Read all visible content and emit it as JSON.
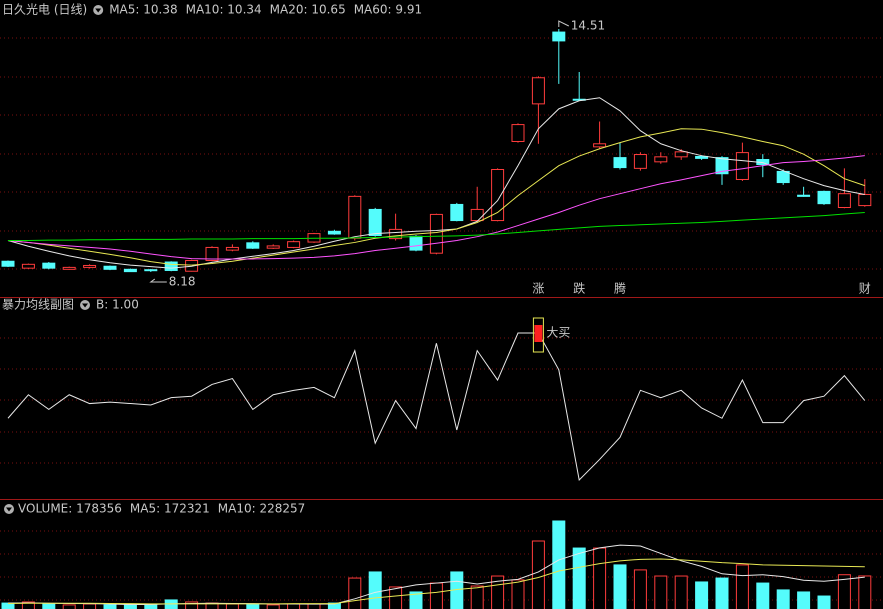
{
  "chart_data": [
    {
      "type": "candlestick",
      "title": "日久光电 (日线)",
      "up_color": "#ff3c3c",
      "down_color": "#54fcfc",
      "open": [
        8.46,
        8.28,
        8.41,
        8.25,
        8.3,
        8.33,
        8.25,
        8.24,
        8.44,
        8.2,
        8.48,
        8.75,
        8.94,
        8.8,
        8.82,
        8.96,
        9.24,
        9.06,
        9.81,
        9.05,
        9.11,
        8.67,
        9.94,
        9.52,
        9.52,
        11.58,
        12.56,
        14.43,
        12.68,
        11.44,
        11.16,
        10.88,
        11.05,
        11.18,
        11.19,
        11.16,
        10.59,
        11.11,
        10.8,
        10.18,
        10.28,
        9.86,
        9.91
      ],
      "high": [
        8.48,
        8.4,
        8.44,
        8.32,
        8.38,
        8.35,
        8.27,
        8.26,
        8.46,
        8.5,
        8.85,
        8.9,
        8.98,
        8.9,
        9.0,
        9.2,
        9.28,
        10.18,
        9.85,
        9.7,
        9.14,
        9.7,
        9.98,
        10.4,
        10.88,
        12.05,
        13.28,
        14.51,
        13.39,
        12.1,
        11.55,
        11.3,
        11.3,
        11.38,
        11.22,
        11.2,
        11.55,
        11.25,
        10.85,
        10.4,
        10.3,
        10.88,
        10.6
      ],
      "low": [
        8.31,
        8.26,
        8.25,
        8.24,
        8.27,
        8.23,
        8.2,
        8.18,
        8.2,
        8.19,
        8.46,
        8.72,
        8.78,
        8.78,
        8.8,
        8.94,
        9.15,
        9.0,
        9.1,
        9.0,
        8.72,
        8.64,
        9.5,
        9.5,
        9.5,
        11.55,
        11.52,
        13.08,
        12.65,
        11.4,
        10.85,
        10.82,
        11.0,
        11.1,
        11.1,
        10.45,
        10.55,
        10.65,
        10.45,
        10.14,
        9.93,
        9.84,
        9.88
      ],
      "close": [
        8.33,
        8.38,
        8.28,
        8.3,
        8.35,
        8.25,
        8.19,
        8.22,
        8.22,
        8.48,
        8.82,
        8.82,
        8.8,
        8.86,
        8.97,
        9.18,
        9.17,
        10.15,
        9.13,
        9.29,
        8.75,
        9.68,
        9.52,
        9.81,
        10.85,
        12.02,
        13.24,
        14.2,
        12.66,
        11.52,
        10.9,
        11.24,
        11.18,
        11.31,
        11.14,
        10.74,
        11.29,
        10.98,
        10.51,
        10.15,
        9.96,
        10.22,
        10.2
      ],
      "series": [
        {
          "name": "MA5: 10.38",
          "color": "#e8e8e8",
          "values": [
            9.0,
            8.85,
            8.72,
            8.6,
            8.5,
            8.42,
            8.36,
            8.32,
            8.28,
            8.33,
            8.43,
            8.52,
            8.59,
            8.66,
            8.74,
            8.85,
            8.98,
            9.1,
            9.18,
            9.21,
            9.24,
            9.26,
            9.3,
            9.5,
            10.04,
            10.95,
            11.91,
            12.43,
            12.64,
            12.72,
            12.38,
            11.86,
            11.52,
            11.34,
            11.21,
            11.13,
            11.08,
            11.03,
            10.82,
            10.61,
            10.43,
            10.3,
            10.2
          ]
        },
        {
          "name": "MA10: 10.34",
          "color": "#e8e854",
          "values": [
            9.0,
            8.95,
            8.88,
            8.8,
            8.72,
            8.64,
            8.55,
            8.45,
            8.38,
            8.36,
            8.4,
            8.46,
            8.54,
            8.62,
            8.7,
            8.78,
            8.87,
            8.95,
            9.06,
            9.12,
            9.17,
            9.21,
            9.3,
            9.47,
            9.73,
            10.17,
            10.56,
            10.95,
            11.2,
            11.39,
            11.55,
            11.7,
            11.8,
            11.91,
            11.9,
            11.81,
            11.7,
            11.58,
            11.47,
            11.25,
            10.95,
            10.61,
            10.43
          ]
        },
        {
          "name": "MA20: 10.65",
          "color": "#ff54ff",
          "values": [
            9.0,
            8.95,
            8.9,
            8.86,
            8.82,
            8.78,
            8.72,
            8.65,
            8.58,
            8.53,
            8.52,
            8.52,
            8.52,
            8.53,
            8.54,
            8.56,
            8.6,
            8.66,
            8.74,
            8.8,
            8.86,
            8.93,
            9.0,
            9.1,
            9.22,
            9.39,
            9.56,
            9.73,
            9.92,
            10.09,
            10.22,
            10.35,
            10.48,
            10.58,
            10.69,
            10.8,
            10.87,
            10.95,
            11.03,
            11.06,
            11.1,
            11.15,
            11.21
          ]
        },
        {
          "name": "MA60: 9.91",
          "color": "#00e000",
          "values": [
            9.0,
            9.0,
            9.01,
            9.01,
            9.02,
            9.02,
            9.03,
            9.03,
            9.03,
            9.04,
            9.04,
            9.04,
            9.05,
            9.05,
            9.05,
            9.06,
            9.06,
            9.07,
            9.08,
            9.09,
            9.1,
            9.11,
            9.12,
            9.14,
            9.17,
            9.21,
            9.25,
            9.29,
            9.33,
            9.37,
            9.39,
            9.41,
            9.43,
            9.45,
            9.47,
            9.5,
            9.53,
            9.56,
            9.59,
            9.62,
            9.65,
            9.69,
            9.73
          ]
        }
      ],
      "markers": [
        null,
        null,
        null,
        null,
        null,
        null,
        null,
        null,
        null,
        null,
        null,
        null,
        null,
        null,
        null,
        null,
        null,
        null,
        null,
        null,
        null,
        null,
        null,
        null,
        null,
        null,
        {
          "label": "涨",
          "color": "#ff5050"
        },
        null,
        {
          "label": "跌",
          "color": "#3cdc3c"
        },
        null,
        {
          "label": "腾",
          "color": "#ff9c3c"
        },
        null,
        null,
        null,
        null,
        null,
        null,
        null,
        null,
        null,
        null,
        null,
        {
          "label": "财",
          "color": "#54a8ff"
        }
      ]
    },
    {
      "type": "line",
      "title": "暴力均线副图",
      "subtitle": "B: 1.00",
      "color": "#e8e8e8",
      "values": [
        42,
        58,
        48,
        58,
        52,
        53,
        52,
        51,
        56,
        57,
        65,
        69,
        48,
        58,
        61,
        63,
        56,
        88,
        25,
        54,
        35,
        93,
        34,
        88,
        68,
        100,
        100,
        75,
        0,
        14,
        29,
        61,
        56,
        61,
        49,
        42,
        68,
        39,
        39,
        54,
        57,
        71,
        54
      ],
      "signals": [
        null,
        null,
        null,
        null,
        null,
        null,
        null,
        null,
        null,
        null,
        null,
        null,
        null,
        null,
        null,
        null,
        null,
        null,
        null,
        null,
        null,
        null,
        null,
        null,
        null,
        null,
        "大买",
        null,
        null,
        null,
        null,
        null,
        null,
        null,
        null,
        null,
        null,
        null,
        null,
        null,
        null,
        null,
        null
      ]
    },
    {
      "type": "bar",
      "series": [
        {
          "name": "VOLUME: 178356",
          "kind": "bar",
          "color": "#c8c8c8",
          "values": [
            32000,
            38000,
            27000,
            22000,
            27000,
            22000,
            22000,
            27000,
            49000,
            38000,
            32000,
            27000,
            27000,
            22000,
            27000,
            27000,
            32000,
            167000,
            200000,
            119000,
            92000,
            140000,
            200000,
            124000,
            178000,
            157000,
            367000,
            475000,
            329000,
            329000,
            238000,
            211000,
            178000,
            178000,
            146000,
            167000,
            238000,
            140000,
            103000,
            92000,
            70000,
            185000,
            178356
          ]
        },
        {
          "name": "MA5: 172321",
          "kind": "line",
          "color": "#e8e8e8",
          "values": [
            32000,
            33000,
            31000,
            30000,
            29000,
            27000,
            24000,
            24000,
            28000,
            30000,
            31000,
            30000,
            29000,
            27000,
            27000,
            26000,
            27000,
            55000,
            90000,
            110000,
            130000,
            140000,
            150000,
            135000,
            150000,
            160000,
            200000,
            265000,
            300000,
            330000,
            345000,
            340000,
            300000,
            260000,
            230000,
            190000,
            180000,
            185000,
            175000,
            155000,
            150000,
            160000,
            172321
          ]
        },
        {
          "name": "MA10: 228257",
          "kind": "line",
          "color": "#e8e854",
          "values": [
            30000,
            31000,
            31000,
            31000,
            31000,
            30000,
            29000,
            28000,
            28000,
            28000,
            28000,
            28000,
            28000,
            28000,
            29000,
            29000,
            29000,
            45000,
            60000,
            70000,
            80000,
            90000,
            105000,
            115000,
            130000,
            145000,
            170000,
            205000,
            225000,
            245000,
            260000,
            268000,
            270000,
            265000,
            258000,
            250000,
            245000,
            238000,
            236000,
            234000,
            232000,
            230000,
            228257
          ]
        }
      ]
    }
  ]
}
